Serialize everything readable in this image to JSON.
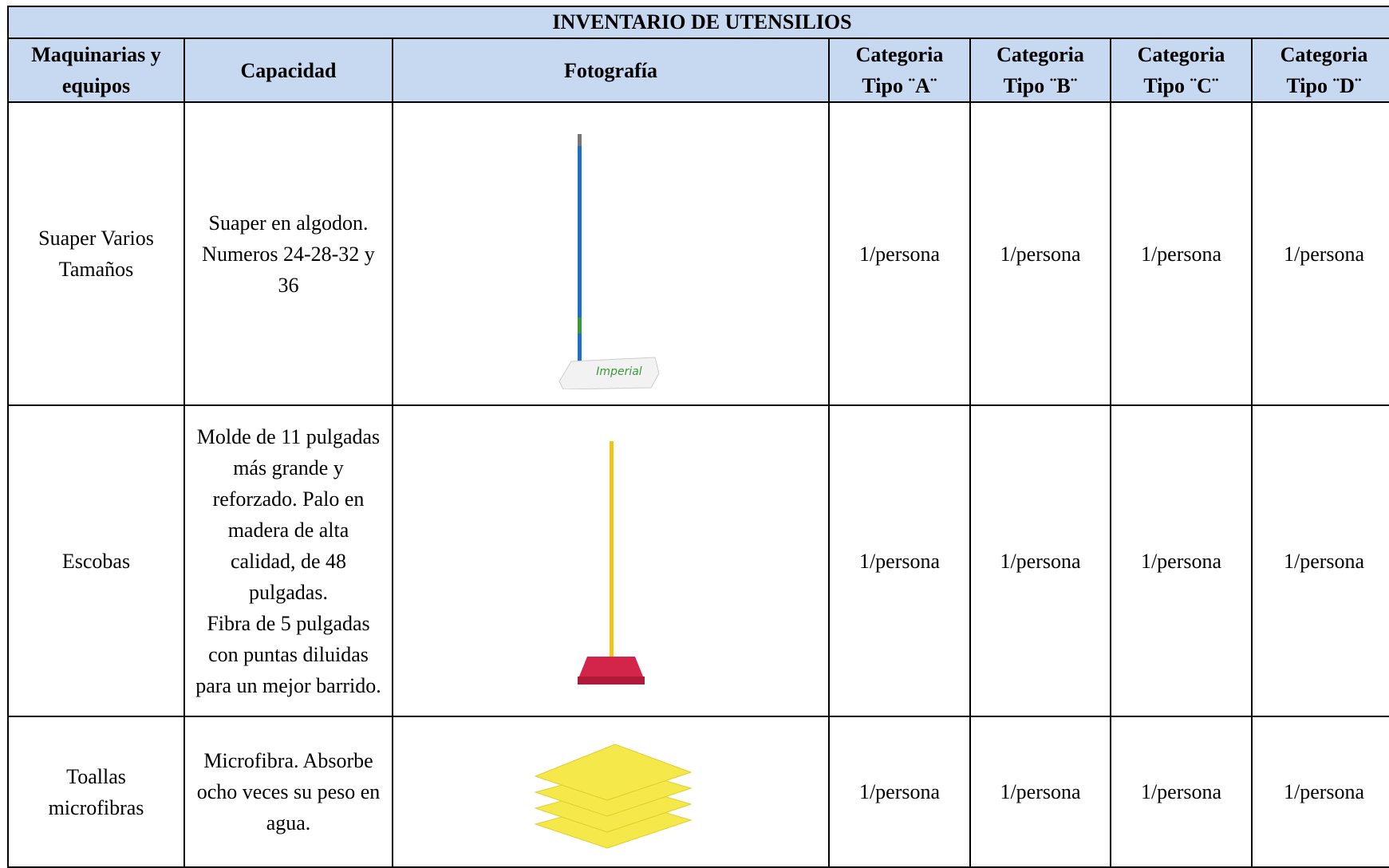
{
  "table": {
    "title": "INVENTARIO DE UTENSILIOS",
    "headers": [
      "Maquinarias y equipos",
      "Capacidad",
      "Fotografía",
      "Categoria Tipo ¨A¨",
      "Categoria Tipo ¨B¨",
      "Categoria Tipo ¨C¨",
      "Categoria Tipo ¨D¨"
    ],
    "rows": [
      {
        "item": "Suaper Varios Tamaños",
        "capacity": [
          "Suaper en algodon. Numeros 24-28-32 y 36"
        ],
        "photo_label": "Imperial",
        "categories": [
          "1/persona",
          "1/persona",
          "1/persona",
          "1/persona"
        ]
      },
      {
        "item": "Escobas",
        "capacity": [
          "Molde de 11 pulgadas más grande y reforzado. Palo en madera de alta calidad, de 48 pulgadas.",
          "Fibra de 5 pulgadas con puntas diluidas para un mejor barrido."
        ],
        "categories": [
          "1/persona",
          "1/persona",
          "1/persona",
          "1/persona"
        ]
      },
      {
        "item": "Toallas microfibras",
        "capacity": [
          "Microfibra. Absorbe ocho veces su peso en agua."
        ],
        "categories": [
          "1/persona",
          "1/persona",
          "1/persona",
          "1/persona"
        ]
      }
    ]
  }
}
